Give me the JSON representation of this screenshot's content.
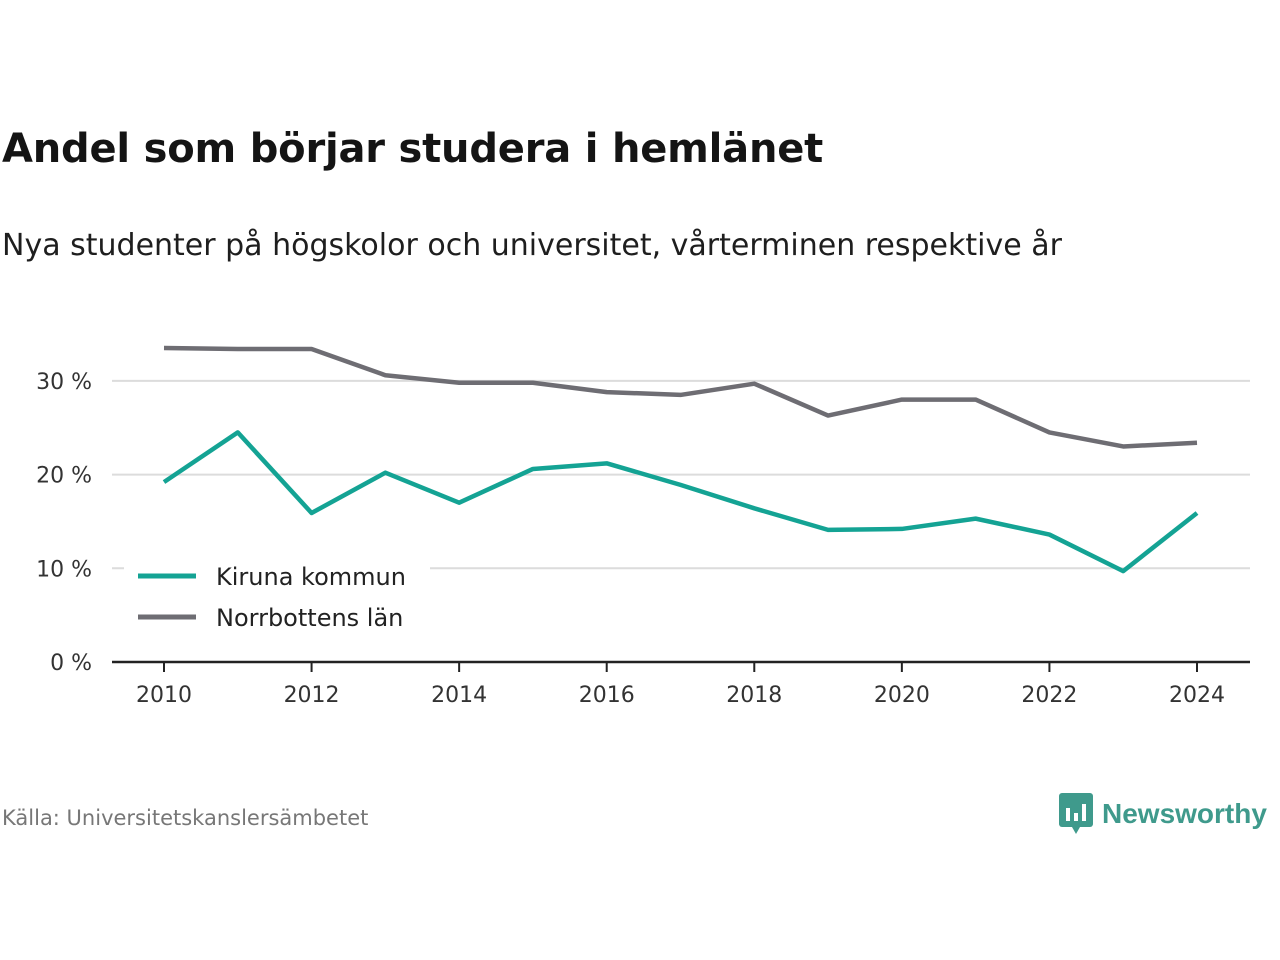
{
  "title": "Andel som börjar studera i hemlänet",
  "subtitle": "Nya studenter på högskolor och universitet, vårterminen respektive år",
  "source": "Källa: Universitetskanslersämbetet",
  "brand": {
    "name": "Newsworthy",
    "icon": "newsworthy-logo-icon",
    "color": "#3f9a8c"
  },
  "chart_data": {
    "type": "line",
    "x": [
      2010,
      2011,
      2012,
      2013,
      2014,
      2015,
      2016,
      2017,
      2018,
      2019,
      2020,
      2021,
      2022,
      2023,
      2024
    ],
    "series": [
      {
        "name": "Kiruna kommun",
        "color": "#14a394",
        "values": [
          19.2,
          24.5,
          15.9,
          20.2,
          17.0,
          20.6,
          21.2,
          18.9,
          16.4,
          14.1,
          14.2,
          15.3,
          13.6,
          9.7,
          15.9
        ]
      },
      {
        "name": "Norrbottens län",
        "color": "#6e6d73",
        "values": [
          33.5,
          33.4,
          33.4,
          30.6,
          29.8,
          29.8,
          28.8,
          28.5,
          29.7,
          26.3,
          28.0,
          28.0,
          24.5,
          23.0,
          23.4
        ]
      }
    ],
    "xticks": [
      "2010",
      "2012",
      "2014",
      "2016",
      "2018",
      "2020",
      "2022",
      "2024"
    ],
    "yticks": [
      "0 %",
      "10 %",
      "20 %",
      "30 %"
    ],
    "ylim": [
      0,
      35
    ],
    "xlim": [
      2010,
      2024
    ],
    "grid": true,
    "legend_position": "bottom-left"
  }
}
